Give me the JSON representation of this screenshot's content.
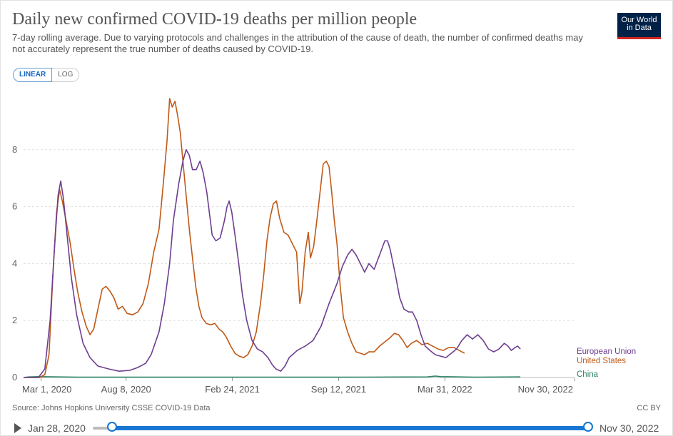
{
  "header": {
    "title": "Daily new confirmed COVID-19 deaths per million people",
    "subtitle": "7-day rolling average. Due to varying protocols and challenges in the attribution of the cause of death, the number of confirmed deaths may not accurately represent the true number of deaths caused by COVID-19.",
    "logo_line1": "Our World",
    "logo_line2": "in Data"
  },
  "controls": {
    "linear_label": "LINEAR",
    "log_label": "LOG"
  },
  "footer": {
    "source": "Source: Johns Hopkins University CSSE COVID-19 Data",
    "license": "CC BY"
  },
  "timeline": {
    "start_label": "Jan 28, 2020",
    "end_label": "Nov 30, 2022"
  },
  "colors": {
    "eu": "#6d3e91",
    "us": "#c05917",
    "china": "#2c8465",
    "grid": "#dddddd",
    "accent": "#1976d2"
  },
  "chart_data": {
    "type": "line",
    "title": "Daily new confirmed COVID-19 deaths per million people",
    "xlabel": "",
    "ylabel": "",
    "x_range_days": [
      0,
      1037
    ],
    "ylim": [
      0,
      10
    ],
    "y_ticks": [
      0,
      2,
      4,
      6,
      8
    ],
    "x_ticks": [
      {
        "label": "Mar 1, 2020",
        "day": 33
      },
      {
        "label": "Aug 8, 2020",
        "day": 193
      },
      {
        "label": "Feb 24, 2021",
        "day": 393
      },
      {
        "label": "Sep 12, 2021",
        "day": 593
      },
      {
        "label": "Mar 31, 2022",
        "day": 793
      },
      {
        "label": "Nov 30, 2022",
        "day": 1037
      }
    ],
    "series": [
      {
        "name": "European Union",
        "points": [
          [
            0,
            0
          ],
          [
            28,
            0
          ],
          [
            40,
            0.3
          ],
          [
            50,
            2
          ],
          [
            58,
            4.5
          ],
          [
            65,
            6.4
          ],
          [
            70,
            6.9
          ],
          [
            75,
            6.3
          ],
          [
            82,
            5
          ],
          [
            90,
            3.5
          ],
          [
            100,
            2.2
          ],
          [
            112,
            1.2
          ],
          [
            125,
            0.7
          ],
          [
            140,
            0.4
          ],
          [
            160,
            0.3
          ],
          [
            180,
            0.22
          ],
          [
            200,
            0.25
          ],
          [
            215,
            0.35
          ],
          [
            230,
            0.5
          ],
          [
            240,
            0.8
          ],
          [
            255,
            1.6
          ],
          [
            265,
            2.6
          ],
          [
            275,
            4
          ],
          [
            282,
            5.5
          ],
          [
            292,
            6.8
          ],
          [
            300,
            7.6
          ],
          [
            306,
            8
          ],
          [
            312,
            7.8
          ],
          [
            318,
            7.3
          ],
          [
            325,
            7.3
          ],
          [
            332,
            7.6
          ],
          [
            338,
            7.2
          ],
          [
            345,
            6.5
          ],
          [
            355,
            5
          ],
          [
            362,
            4.8
          ],
          [
            370,
            4.9
          ],
          [
            378,
            5.5
          ],
          [
            383,
            6
          ],
          [
            387,
            6.2
          ],
          [
            392,
            5.8
          ],
          [
            398,
            5
          ],
          [
            405,
            4
          ],
          [
            412,
            2.9
          ],
          [
            420,
            2
          ],
          [
            430,
            1.3
          ],
          [
            440,
            1
          ],
          [
            450,
            0.9
          ],
          [
            460,
            0.7
          ],
          [
            468,
            0.45
          ],
          [
            475,
            0.3
          ],
          [
            484,
            0.22
          ],
          [
            492,
            0.4
          ],
          [
            500,
            0.7
          ],
          [
            515,
            0.95
          ],
          [
            530,
            1.1
          ],
          [
            545,
            1.3
          ],
          [
            560,
            1.8
          ],
          [
            575,
            2.6
          ],
          [
            590,
            3.3
          ],
          [
            600,
            3.9
          ],
          [
            610,
            4.3
          ],
          [
            618,
            4.5
          ],
          [
            626,
            4.3
          ],
          [
            634,
            4
          ],
          [
            642,
            3.7
          ],
          [
            650,
            4
          ],
          [
            660,
            3.8
          ],
          [
            670,
            4.3
          ],
          [
            680,
            4.8
          ],
          [
            685,
            4.8
          ],
          [
            690,
            4.5
          ],
          [
            700,
            3.6
          ],
          [
            708,
            2.8
          ],
          [
            716,
            2.4
          ],
          [
            725,
            2.3
          ],
          [
            732,
            2.3
          ],
          [
            740,
            2
          ],
          [
            748,
            1.5
          ],
          [
            756,
            1.1
          ],
          [
            765,
            0.95
          ],
          [
            775,
            0.8
          ],
          [
            785,
            0.75
          ],
          [
            795,
            0.7
          ],
          [
            805,
            0.85
          ],
          [
            815,
            1
          ],
          [
            825,
            1.3
          ],
          [
            835,
            1.5
          ],
          [
            845,
            1.35
          ],
          [
            855,
            1.5
          ],
          [
            865,
            1.3
          ],
          [
            875,
            1
          ],
          [
            885,
            0.9
          ],
          [
            895,
            1
          ],
          [
            905,
            1.2
          ],
          [
            912,
            1.1
          ],
          [
            918,
            0.95
          ],
          [
            925,
            1.05
          ],
          [
            930,
            1.1
          ],
          [
            935,
            1
          ]
        ]
      },
      {
        "name": "United States",
        "points": [
          [
            0,
            0
          ],
          [
            30,
            0
          ],
          [
            40,
            0.1
          ],
          [
            48,
            0.8
          ],
          [
            55,
            3.5
          ],
          [
            62,
            5.8
          ],
          [
            68,
            6.6
          ],
          [
            73,
            6.2
          ],
          [
            80,
            5.5
          ],
          [
            88,
            4.7
          ],
          [
            95,
            3.8
          ],
          [
            102,
            3
          ],
          [
            110,
            2.3
          ],
          [
            118,
            1.8
          ],
          [
            125,
            1.5
          ],
          [
            132,
            1.7
          ],
          [
            140,
            2.4
          ],
          [
            148,
            3.1
          ],
          [
            155,
            3.2
          ],
          [
            162,
            3.05
          ],
          [
            170,
            2.8
          ],
          [
            178,
            2.4
          ],
          [
            186,
            2.5
          ],
          [
            195,
            2.25
          ],
          [
            205,
            2.2
          ],
          [
            215,
            2.3
          ],
          [
            225,
            2.6
          ],
          [
            235,
            3.3
          ],
          [
            245,
            4.4
          ],
          [
            255,
            5.2
          ],
          [
            263,
            6.8
          ],
          [
            270,
            8.3
          ],
          [
            275,
            9.8
          ],
          [
            280,
            9.5
          ],
          [
            285,
            9.7
          ],
          [
            290,
            9.2
          ],
          [
            295,
            8.6
          ],
          [
            300,
            7.6
          ],
          [
            306,
            6.4
          ],
          [
            312,
            5.2
          ],
          [
            318,
            4.2
          ],
          [
            324,
            3.2
          ],
          [
            330,
            2.5
          ],
          [
            336,
            2.1
          ],
          [
            344,
            1.9
          ],
          [
            352,
            1.85
          ],
          [
            360,
            1.9
          ],
          [
            368,
            1.7
          ],
          [
            375,
            1.6
          ],
          [
            382,
            1.4
          ],
          [
            390,
            1.1
          ],
          [
            398,
            0.85
          ],
          [
            406,
            0.75
          ],
          [
            414,
            0.7
          ],
          [
            422,
            0.8
          ],
          [
            430,
            1.1
          ],
          [
            438,
            1.6
          ],
          [
            446,
            2.6
          ],
          [
            452,
            3.6
          ],
          [
            458,
            4.8
          ],
          [
            464,
            5.6
          ],
          [
            470,
            6.1
          ],
          [
            476,
            6.2
          ],
          [
            482,
            5.6
          ],
          [
            490,
            5.1
          ],
          [
            498,
            5
          ],
          [
            506,
            4.7
          ],
          [
            514,
            4.4
          ],
          [
            520,
            2.6
          ],
          [
            524,
            3
          ],
          [
            530,
            4.4
          ],
          [
            536,
            5.1
          ],
          [
            540,
            4.2
          ],
          [
            546,
            4.6
          ],
          [
            552,
            5.5
          ],
          [
            558,
            6.5
          ],
          [
            564,
            7.5
          ],
          [
            570,
            7.6
          ],
          [
            575,
            7.4
          ],
          [
            580,
            6.5
          ],
          [
            585,
            5.5
          ],
          [
            590,
            4.7
          ],
          [
            596,
            3.2
          ],
          [
            602,
            2.1
          ],
          [
            610,
            1.6
          ],
          [
            618,
            1.2
          ],
          [
            626,
            0.9
          ],
          [
            634,
            0.85
          ],
          [
            642,
            0.8
          ],
          [
            650,
            0.9
          ],
          [
            660,
            0.9
          ],
          [
            670,
            1.1
          ],
          [
            680,
            1.25
          ],
          [
            690,
            1.4
          ],
          [
            698,
            1.55
          ],
          [
            706,
            1.5
          ],
          [
            714,
            1.3
          ],
          [
            722,
            1.05
          ],
          [
            730,
            1.2
          ],
          [
            740,
            1.3
          ],
          [
            750,
            1.15
          ],
          [
            760,
            1.2
          ],
          [
            770,
            1.1
          ],
          [
            780,
            1
          ],
          [
            790,
            0.95
          ],
          [
            800,
            1.05
          ],
          [
            810,
            1.05
          ],
          [
            820,
            0.95
          ],
          [
            830,
            0.85
          ]
        ]
      },
      {
        "name": "China",
        "points": [
          [
            0,
            0
          ],
          [
            10,
            0.02
          ],
          [
            30,
            0.03
          ],
          [
            100,
            0.01
          ],
          [
            300,
            0.01
          ],
          [
            600,
            0.01
          ],
          [
            760,
            0.02
          ],
          [
            775,
            0.05
          ],
          [
            785,
            0.03
          ],
          [
            850,
            0.01
          ],
          [
            935,
            0.02
          ]
        ]
      }
    ],
    "legend": [
      "European Union",
      "United States",
      "China"
    ],
    "legend_position": "right-end-of-lines"
  }
}
